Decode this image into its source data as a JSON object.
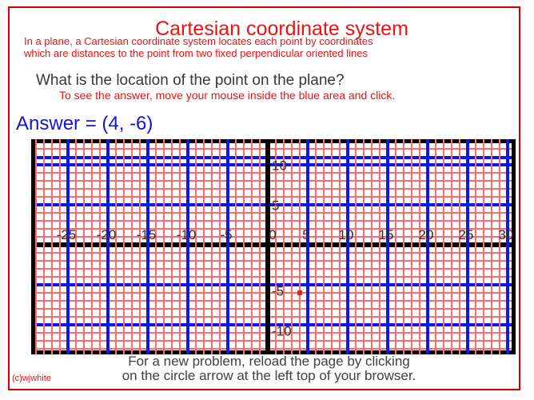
{
  "page": {
    "title": "Cartesian coordinate system",
    "subtitle_line1": "In a plane, a Cartesian coordinate system locates each point by coordinates",
    "subtitle_line2": "which are distances to the point from two fixed perpendicular oriented lines",
    "question": "What is the location of the point on the plane?",
    "hint": "To see the answer, move your mouse inside the blue area and click.",
    "answer_label": "Answer = ",
    "answer_value": "(4, -6)",
    "footer_line1": "For a new problem, reload the page by clicking",
    "footer_line2": "on the circle arrow at the left top of your browser.",
    "copyright": "(c)wjwhite"
  },
  "colors": {
    "page_border_red": "#d40000",
    "heading_red": "#ee1111",
    "answer_blue": "#1414d6",
    "text_dark": "#383838",
    "grid_minor_red": "#ff6b6b",
    "grid_major_blue": "#0a18ef",
    "axis_black": "#000000",
    "point_red": "#e32222"
  },
  "chart_data": {
    "type": "scatter",
    "title": "",
    "xlabel": "",
    "ylabel": "",
    "xlim": [
      -29.5,
      30.5
    ],
    "ylim": [
      -13,
      13
    ],
    "minor_grid_step": 1,
    "major_grid_step": 5,
    "grid": "on",
    "x_tick_labels": [
      -25,
      -20,
      -15,
      -10,
      -5,
      0,
      5,
      10,
      15,
      20,
      25,
      30
    ],
    "y_tick_labels": [
      10,
      5,
      -5,
      -10
    ],
    "points": [
      {
        "x": 4,
        "y": -6
      }
    ]
  }
}
